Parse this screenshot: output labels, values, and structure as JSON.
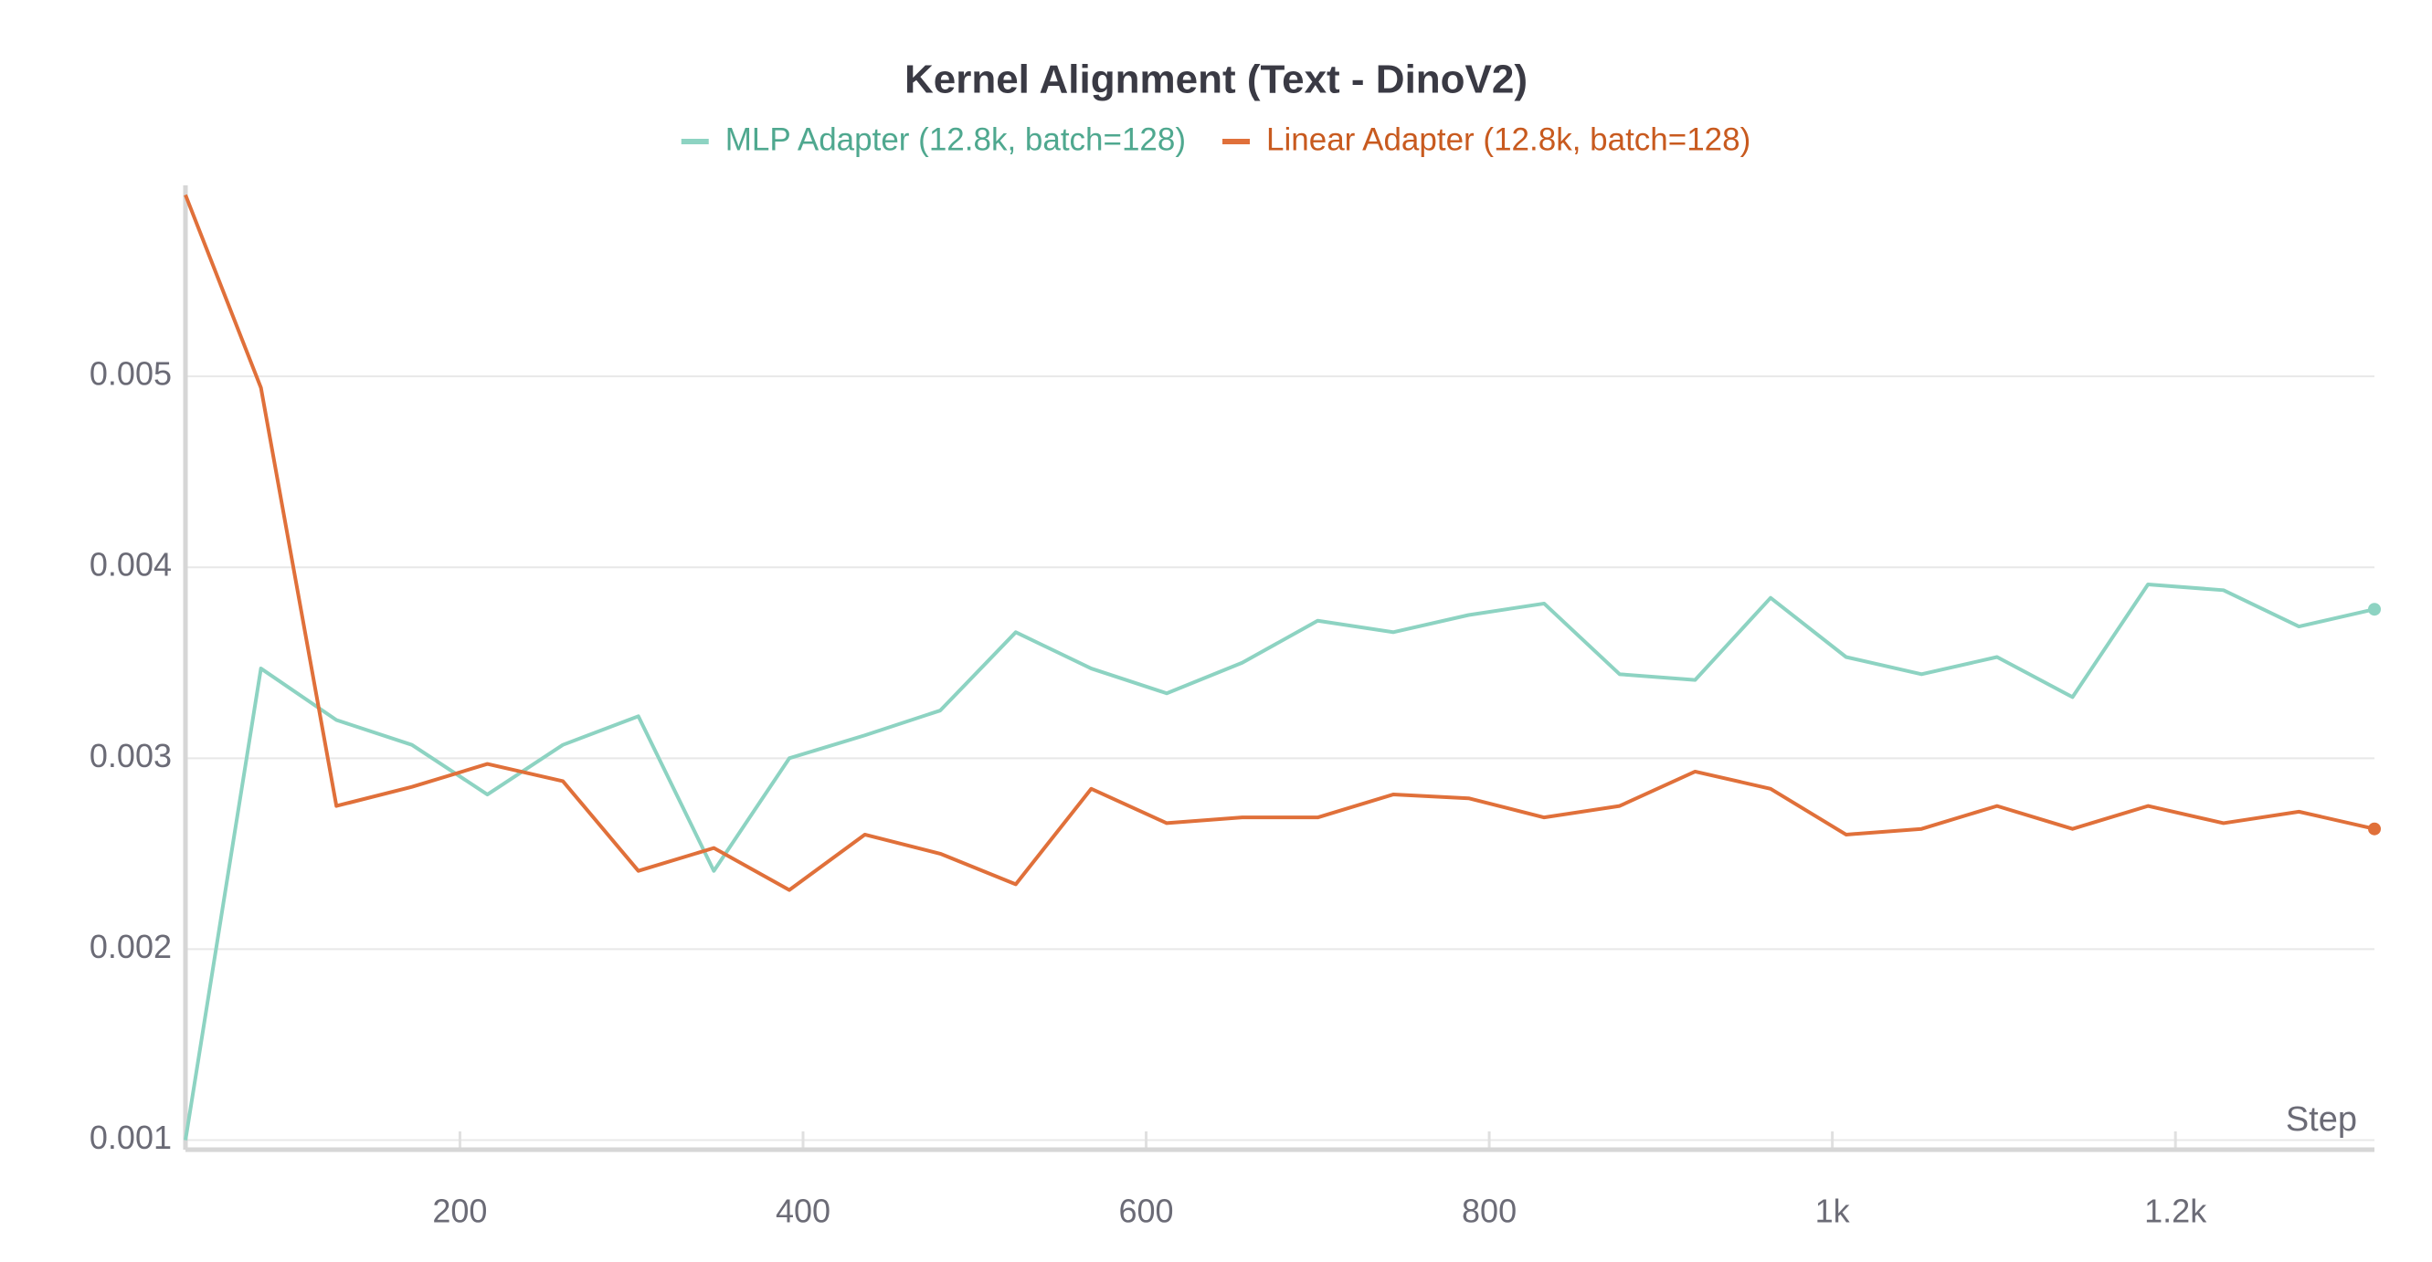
{
  "chart_data": {
    "type": "line",
    "title": "Kernel Alignment (Text - DinoV2)",
    "x_label": "Step",
    "x": [
      40,
      84,
      128,
      172,
      216,
      260,
      304,
      348,
      392,
      436,
      480,
      524,
      568,
      612,
      656,
      700,
      744,
      788,
      832,
      876,
      920,
      964,
      1008,
      1052,
      1096,
      1140,
      1184,
      1228,
      1272,
      1316
    ],
    "series": [
      {
        "name": "MLP Adapter (12.8k, batch=128)",
        "color": "#8dd3c2",
        "text_color": "#4fa88f",
        "values": [
          0.001,
          0.00347,
          0.0032,
          0.00307,
          0.00281,
          0.00307,
          0.00322,
          0.00241,
          0.003,
          0.00312,
          0.00325,
          0.00366,
          0.00347,
          0.00334,
          0.0035,
          0.00372,
          0.00366,
          0.00375,
          0.00381,
          0.00344,
          0.00341,
          0.00384,
          0.00353,
          0.00344,
          0.00353,
          0.00332,
          0.00391,
          0.00388,
          0.00369,
          0.00378
        ]
      },
      {
        "name": "Linear Adapter (12.8k, batch=128)",
        "color": "#e0703a",
        "text_color": "#c85a1f",
        "values": [
          0.00595,
          0.00494,
          0.00275,
          0.00285,
          0.00297,
          0.00288,
          0.00241,
          0.00253,
          0.00231,
          0.0026,
          0.0025,
          0.00234,
          0.00284,
          0.00266,
          0.00269,
          0.00269,
          0.00281,
          0.00279,
          0.00269,
          0.00275,
          0.00293,
          0.00284,
          0.0026,
          0.00263,
          0.00275,
          0.00263,
          0.00275,
          0.00266,
          0.00272,
          0.00263
        ]
      }
    ],
    "xlim": [
      40,
      1316
    ],
    "ylim": [
      0.00095,
      0.006
    ],
    "xticks": [
      200,
      400,
      600,
      800,
      {
        "value": 1000,
        "label": "1k"
      },
      {
        "value": 1200,
        "label": "1.2k"
      }
    ],
    "yticks": [
      0.001,
      0.002,
      0.003,
      0.004,
      0.005
    ],
    "grid": true,
    "legend": "top"
  }
}
